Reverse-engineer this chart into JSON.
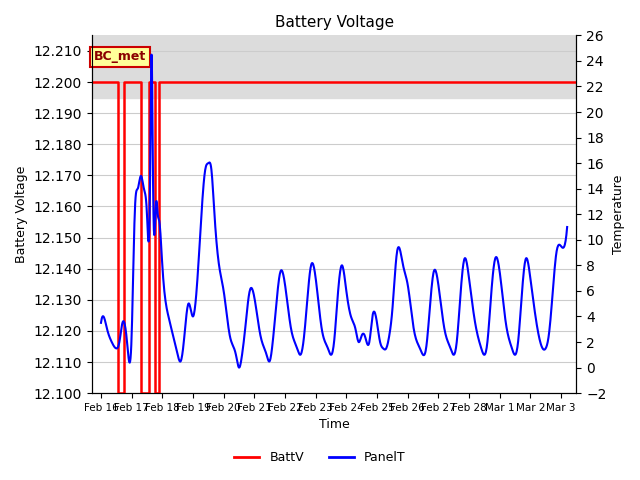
{
  "title": "Battery Voltage",
  "ylabel_left": "Battery Voltage",
  "ylabel_right": "Temperature",
  "xlabel": "Time",
  "legend_labels": [
    "BattV",
    "PanelT"
  ],
  "legend_colors": [
    "#FF0000",
    "#0000FF"
  ],
  "annotation_text": "BC_met",
  "annotation_bg": "#FFFF99",
  "annotation_border": "#CC0000",
  "ylim_left": [
    12.1,
    12.215
  ],
  "ylim_right": [
    -2,
    26
  ],
  "shaded_region": [
    12.195,
    12.215
  ],
  "shaded_color": "#DCDCDC",
  "background_color": "#FFFFFF",
  "grid_color": "#CCCCCC",
  "x_tick_labels": [
    "Feb 16",
    "Feb 17",
    "Feb 18",
    "Feb 19",
    "Feb 20",
    "Feb 21",
    "Feb 22",
    "Feb 23",
    "Feb 24",
    "Feb 25",
    "Feb 26",
    "Feb 27",
    "Feb 28",
    "Mar 1",
    "Mar 2",
    "Mar 3"
  ],
  "x_tick_positions": [
    0,
    1,
    2,
    3,
    4,
    5,
    6,
    7,
    8,
    9,
    10,
    11,
    12,
    13,
    14,
    15
  ],
  "x_range": [
    -0.3,
    15.5
  ],
  "batt_segments": [
    [
      [
        -0.3,
        0.55
      ],
      [
        12.2,
        12.2
      ]
    ],
    [
      [
        0.55,
        0.55
      ],
      [
        12.2,
        12.1
      ]
    ],
    [
      [
        0.55,
        0.75
      ],
      [
        12.1,
        12.1
      ]
    ],
    [
      [
        0.75,
        0.75
      ],
      [
        12.1,
        12.2
      ]
    ],
    [
      [
        0.75,
        1.3
      ],
      [
        12.2,
        12.2
      ]
    ],
    [
      [
        1.3,
        1.3
      ],
      [
        12.2,
        12.1
      ]
    ],
    [
      [
        1.3,
        1.55
      ],
      [
        12.1,
        12.1
      ]
    ],
    [
      [
        1.55,
        1.55
      ],
      [
        12.1,
        12.2
      ]
    ],
    [
      [
        1.55,
        1.75
      ],
      [
        12.2,
        12.2
      ]
    ],
    [
      [
        1.75,
        1.75
      ],
      [
        12.2,
        12.1
      ]
    ],
    [
      [
        1.75,
        1.9
      ],
      [
        12.1,
        12.1
      ]
    ],
    [
      [
        1.9,
        1.9
      ],
      [
        12.1,
        12.2
      ]
    ],
    [
      [
        1.9,
        15.5
      ],
      [
        12.2,
        12.2
      ]
    ]
  ],
  "panelt_data": {
    "x": [
      0.0,
      0.08,
      0.2,
      0.35,
      0.5,
      0.6,
      0.7,
      0.85,
      1.0,
      1.1,
      1.2,
      1.3,
      1.4,
      1.5,
      1.6,
      1.65,
      1.7,
      1.8,
      1.85,
      1.9,
      2.0,
      2.2,
      2.4,
      2.5,
      2.6,
      2.7,
      2.85,
      3.0,
      3.2,
      3.4,
      3.5,
      3.6,
      3.7,
      3.85,
      4.0,
      4.2,
      4.4,
      4.5,
      4.6,
      4.7,
      4.85,
      5.0,
      5.2,
      5.4,
      5.5,
      5.6,
      5.7,
      5.85,
      6.0,
      6.2,
      6.4,
      6.5,
      6.6,
      6.7,
      6.85,
      7.0,
      7.2,
      7.4,
      7.5,
      7.6,
      7.7,
      7.85,
      8.0,
      8.15,
      8.3,
      8.4,
      8.5,
      8.6,
      8.75,
      8.85,
      9.0,
      9.1,
      9.2,
      9.3,
      9.4,
      9.5,
      9.65,
      9.85,
      10.0,
      10.2,
      10.4,
      10.5,
      10.6,
      10.7,
      10.85,
      11.0,
      11.2,
      11.4,
      11.5,
      11.6,
      11.7,
      11.85,
      12.0,
      12.2,
      12.4,
      12.5,
      12.6,
      12.7,
      12.85,
      13.0,
      13.2,
      13.4,
      13.5,
      13.6,
      13.7,
      13.85,
      14.0,
      14.2,
      14.4,
      14.5,
      14.6,
      14.7,
      14.85,
      15.0,
      15.2
    ],
    "y": [
      3.5,
      4.0,
      3.0,
      2.0,
      1.5,
      2.0,
      3.5,
      2.0,
      2.5,
      12.0,
      14.0,
      15.0,
      14.0,
      12.0,
      14.5,
      24.5,
      14.0,
      13.0,
      12.0,
      11.5,
      8.0,
      4.0,
      2.0,
      1.0,
      0.5,
      2.0,
      5.0,
      4.0,
      9.0,
      15.5,
      16.0,
      15.5,
      12.0,
      8.0,
      6.0,
      2.5,
      1.0,
      0.0,
      1.0,
      3.0,
      6.0,
      5.5,
      2.5,
      1.0,
      0.5,
      2.0,
      4.5,
      7.5,
      6.5,
      3.0,
      1.5,
      1.0,
      2.0,
      4.5,
      8.0,
      7.0,
      3.0,
      1.5,
      1.0,
      2.0,
      5.0,
      8.0,
      6.0,
      4.0,
      3.0,
      2.0,
      2.5,
      2.5,
      2.0,
      4.0,
      3.5,
      2.0,
      1.5,
      1.5,
      2.5,
      4.5,
      9.0,
      8.0,
      6.5,
      3.0,
      1.5,
      1.0,
      1.5,
      4.0,
      7.5,
      6.5,
      3.0,
      1.5,
      1.0,
      2.0,
      5.0,
      8.5,
      7.0,
      3.5,
      1.5,
      1.0,
      2.0,
      5.0,
      8.5,
      7.5,
      3.5,
      1.5,
      1.0,
      2.0,
      5.0,
      8.5,
      7.0,
      3.5,
      1.5,
      1.5,
      2.5,
      5.0,
      9.0,
      9.5,
      11.0
    ]
  }
}
